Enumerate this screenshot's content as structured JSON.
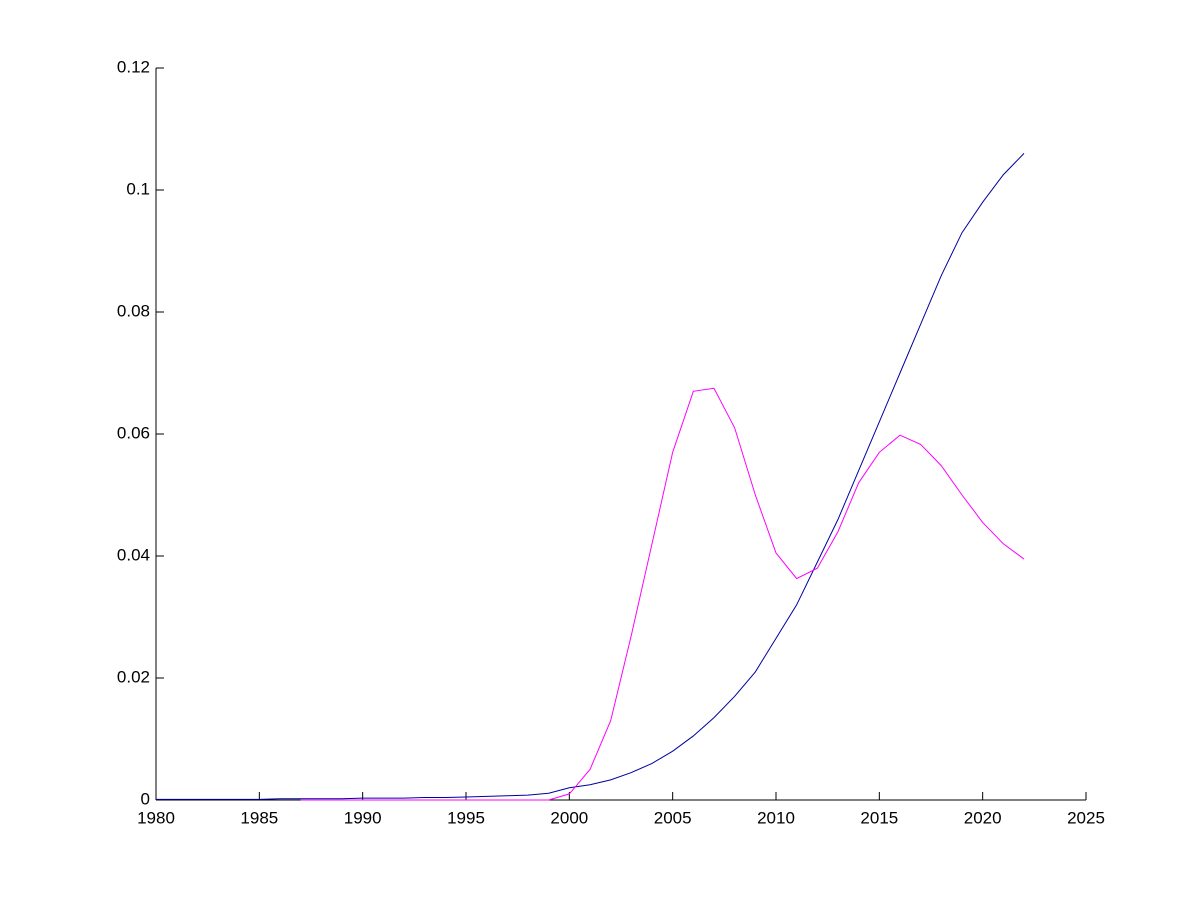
{
  "chart_data": {
    "type": "line",
    "x": [
      1980,
      1981,
      1982,
      1983,
      1984,
      1985,
      1986,
      1987,
      1988,
      1989,
      1990,
      1991,
      1992,
      1993,
      1994,
      1995,
      1996,
      1997,
      1998,
      1999,
      2000,
      2001,
      2002,
      2003,
      2004,
      2005,
      2006,
      2007,
      2008,
      2009,
      2010,
      2011,
      2012,
      2013,
      2014,
      2015,
      2016,
      2017,
      2018,
      2019,
      2020,
      2021,
      2022
    ],
    "series": [
      {
        "color": "#0000a0",
        "values": [
          0.0001,
          0.0001,
          0.0001,
          0.0001,
          0.0001,
          0.0001,
          0.0002,
          0.0002,
          0.0002,
          0.0002,
          0.0003,
          0.0003,
          0.0003,
          0.0004,
          0.0004,
          0.0005,
          0.0006,
          0.0007,
          0.0008,
          0.0011,
          0.002,
          0.0025,
          0.0033,
          0.0045,
          0.006,
          0.008,
          0.0105,
          0.0135,
          0.017,
          0.021,
          0.0265,
          0.032,
          0.039,
          0.046,
          0.054,
          0.062,
          0.07,
          0.078,
          0.086,
          0.093,
          0.098,
          0.1025,
          0.106
        ]
      },
      {
        "color": "#ff00ff",
        "values": [
          null,
          null,
          null,
          null,
          null,
          null,
          null,
          0,
          0,
          0,
          0,
          0,
          0,
          0,
          0,
          0,
          0,
          0,
          0,
          0,
          0.001,
          0.005,
          0.013,
          0.027,
          0.042,
          0.057,
          0.067,
          0.0675,
          0.061,
          0.05,
          0.0405,
          0.0363,
          0.038,
          0.044,
          0.052,
          0.057,
          0.0598,
          0.0583,
          0.0548,
          0.05,
          0.0455,
          0.042,
          0.0395
        ]
      }
    ],
    "xlim": [
      1980,
      2025
    ],
    "xticks": [
      1980,
      1985,
      1990,
      1995,
      2000,
      2005,
      2010,
      2015,
      2020,
      2025
    ],
    "ylim": [
      0,
      0.12
    ],
    "yticks": [
      0,
      0.02,
      0.04,
      0.06,
      0.08,
      0.1,
      0.12
    ]
  }
}
